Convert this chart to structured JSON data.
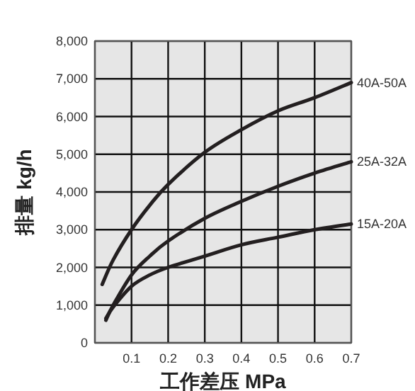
{
  "chart_data": {
    "type": "line",
    "xlabel": "工作差压 MPa",
    "ylabel": "排量 kg/h",
    "xlim": [
      0,
      0.7
    ],
    "ylim": [
      0,
      8000
    ],
    "xticks": [
      {
        "value": 0,
        "label": null
      },
      0.1,
      0.2,
      0.3,
      0.4,
      0.5,
      0.6,
      0.7
    ],
    "yticks": [
      {
        "value": 0,
        "label": "0"
      },
      {
        "value": 1000,
        "label": "1,000"
      },
      {
        "value": 2000,
        "label": "2,000"
      },
      {
        "value": 3000,
        "label": "3,000"
      },
      {
        "value": 4000,
        "label": "4,000"
      },
      {
        "value": 5000,
        "label": "5,000"
      },
      {
        "value": 6000,
        "label": "6,000"
      },
      {
        "value": 7000,
        "label": "7,000"
      },
      {
        "value": 8000,
        "label": "8,000"
      }
    ],
    "grid": true,
    "marker": "none",
    "line_style": "solid",
    "series": [
      {
        "name": "40A-50A",
        "color": "#231f20",
        "x": [
          0.02,
          0.05,
          0.1,
          0.15,
          0.2,
          0.3,
          0.4,
          0.5,
          0.6,
          0.7
        ],
        "values": [
          1550,
          2200,
          3000,
          3650,
          4200,
          5050,
          5650,
          6150,
          6500,
          6900
        ]
      },
      {
        "name": "25A-32A",
        "color": "#231f20",
        "x": [
          0.03,
          0.05,
          0.1,
          0.15,
          0.2,
          0.3,
          0.4,
          0.5,
          0.6,
          0.7
        ],
        "values": [
          600,
          1000,
          1800,
          2300,
          2700,
          3300,
          3750,
          4150,
          4500,
          4800
        ]
      },
      {
        "name": "15A-20A",
        "color": "#231f20",
        "x": [
          0.03,
          0.05,
          0.1,
          0.15,
          0.2,
          0.3,
          0.4,
          0.5,
          0.6,
          0.7
        ],
        "values": [
          650,
          950,
          1500,
          1800,
          2000,
          2300,
          2600,
          2800,
          3000,
          3150
        ]
      }
    ]
  }
}
